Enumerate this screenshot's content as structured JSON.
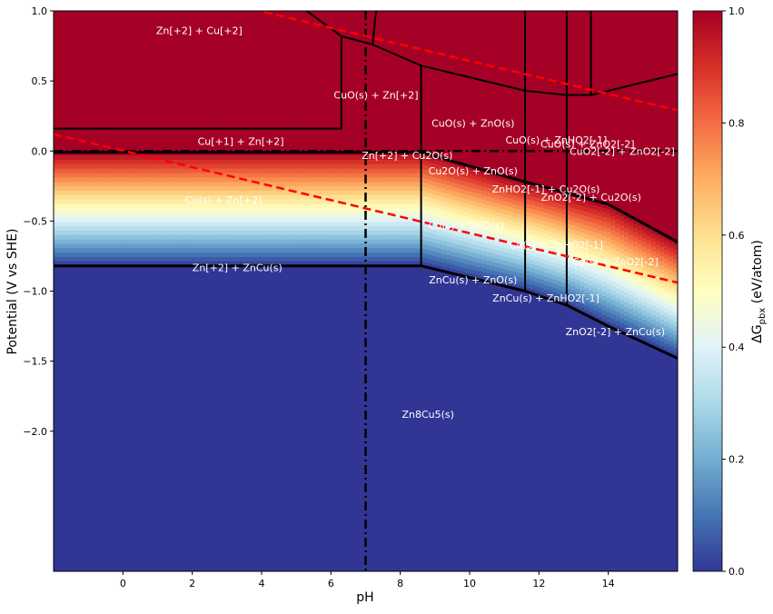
{
  "chart_data": {
    "type": "heatmap",
    "subtype": "pourbaix-diagram",
    "xlabel": "pH",
    "ylabel": "Potential (V vs SHE)",
    "xlim": [
      -2,
      16
    ],
    "ylim": [
      -3,
      1
    ],
    "xticks": [
      0,
      2,
      4,
      6,
      8,
      10,
      12,
      14
    ],
    "yticks": [
      1.0,
      0.5,
      0.0,
      -0.5,
      -1.0,
      -1.5,
      -2.0
    ],
    "xtick_labels": [
      "0",
      "2",
      "4",
      "6",
      "8",
      "10",
      "12",
      "14"
    ],
    "ytick_labels": [
      "1.0",
      "0.5",
      "0.0",
      "−0.5",
      "−1.0",
      "−1.5",
      "−2.0"
    ],
    "grid": false,
    "colorbar": {
      "label": "ΔG_pbx (eV/atom)",
      "label_main": "ΔG",
      "label_sub": "pbx",
      "label_tail": " (eV/atom)",
      "range": [
        0,
        1
      ],
      "ticks": [
        "0.0",
        "0.2",
        "0.4",
        "0.6",
        "0.8",
        "1.0"
      ],
      "colormap": "RdYlBu_r"
    },
    "field_profile": [
      {
        "pH": -2,
        "e_top": 0.0,
        "e_bottom": -0.82
      },
      {
        "pH": 8.6,
        "e_top": 0.0,
        "e_bottom": -0.82
      },
      {
        "pH": 11.6,
        "e_top": -0.22,
        "e_bottom": -1.0
      },
      {
        "pH": 12.8,
        "e_top": -0.3,
        "e_bottom": -1.1
      },
      {
        "pH": 14,
        "e_top": -0.38,
        "e_bottom": -1.25
      },
      {
        "pH": 16,
        "e_top": -0.65,
        "e_bottom": -1.48
      }
    ],
    "water_lines": [
      {
        "name": "O2/H2O",
        "points": [
          [
            -2,
            1.35
          ],
          [
            16,
            0.29
          ]
        ]
      },
      {
        "name": "H2O/H2",
        "points": [
          [
            -2,
            0.12
          ],
          [
            16,
            -0.94
          ]
        ]
      }
    ],
    "reference_lines": [
      {
        "orientation": "vertical",
        "pH": 7
      },
      {
        "orientation": "horizontal",
        "E": 0.0
      }
    ],
    "boundaries": [
      {
        "points": [
          [
            -2,
            0.16
          ],
          [
            6.3,
            0.16
          ],
          [
            6.3,
            0.82
          ],
          [
            5.3,
            1.0
          ]
        ]
      },
      {
        "points": [
          [
            6.3,
            0.82
          ],
          [
            7.2,
            0.76
          ],
          [
            7.3,
            1.0
          ]
        ]
      },
      {
        "points": [
          [
            7.2,
            0.76
          ],
          [
            8.6,
            0.61
          ],
          [
            11.6,
            0.43
          ],
          [
            12.8,
            0.4
          ],
          [
            13.5,
            0.4
          ],
          [
            16,
            0.55
          ]
        ]
      },
      {
        "points": [
          [
            8.6,
            0.61
          ],
          [
            8.6,
            -0.82
          ]
        ]
      },
      {
        "points": [
          [
            11.6,
            1.0
          ],
          [
            11.6,
            -1.0
          ]
        ]
      },
      {
        "points": [
          [
            12.8,
            1.0
          ],
          [
            12.8,
            -1.1
          ]
        ]
      },
      {
        "points": [
          [
            13.5,
            1.0
          ],
          [
            13.5,
            0.4
          ]
        ]
      },
      {
        "points": [
          [
            -2,
            -0.01
          ],
          [
            8.6,
            -0.01
          ],
          [
            11.6,
            -0.22
          ],
          [
            12.8,
            -0.3
          ],
          [
            14,
            -0.38
          ],
          [
            16,
            -0.65
          ]
        ],
        "bold": true
      },
      {
        "points": [
          [
            -2,
            -0.82
          ],
          [
            8.6,
            -0.82
          ],
          [
            11.6,
            -1.0
          ],
          [
            12.8,
            -1.1
          ],
          [
            14,
            -1.25
          ],
          [
            16,
            -1.48
          ]
        ],
        "bold": true
      }
    ],
    "region_labels": [
      {
        "text": "Zn[+2] + Cu[+2]",
        "pH": 2.2,
        "E": 0.86
      },
      {
        "text": "CuO(s) + Zn[+2]",
        "pH": 7.3,
        "E": 0.4
      },
      {
        "text": "CuO(s) + ZnO(s)",
        "pH": 10.1,
        "E": 0.2
      },
      {
        "text": "CuO(s) + ZnHO2[-1]",
        "pH": 12.5,
        "E": 0.08
      },
      {
        "text": "CuO(s) + ZnO2[-2]",
        "pH": 13.4,
        "E": 0.05
      },
      {
        "text": "CuO2[-2] + ZnO2[-2]",
        "pH": 14.4,
        "E": 0.0
      },
      {
        "text": "Cu[+1] + Zn[+2]",
        "pH": 3.4,
        "E": 0.07
      },
      {
        "text": "Zn[+2] + Cu2O(s)",
        "pH": 8.2,
        "E": -0.03
      },
      {
        "text": "Cu2O(s) + ZnO(s)",
        "pH": 10.1,
        "E": -0.14
      },
      {
        "text": "ZnHO2[-1] + Cu2O(s)",
        "pH": 12.2,
        "E": -0.27
      },
      {
        "text": "ZnO2[-2] + Cu2O(s)",
        "pH": 13.5,
        "E": -0.33
      },
      {
        "text": "Cu(s) + Zn[+2]",
        "pH": 2.9,
        "E": -0.35
      },
      {
        "text": "Cu(s) + ZnO(s)",
        "pH": 9.9,
        "E": -0.53
      },
      {
        "text": "Cu(s) + ZnHO2[-1]",
        "pH": 12.5,
        "E": -0.67
      },
      {
        "text": "Cu(s) + ZnO2[-2]",
        "pH": 14.2,
        "E": -0.79
      },
      {
        "text": "Zn[+2] + ZnCu(s)",
        "pH": 3.3,
        "E": -0.83
      },
      {
        "text": "ZnCu(s) + ZnO(s)",
        "pH": 10.1,
        "E": -0.92
      },
      {
        "text": "ZnCu(s) + ZnHO2[-1]",
        "pH": 12.2,
        "E": -1.05
      },
      {
        "text": "ZnO2[-2] + ZnCu(s)",
        "pH": 14.2,
        "E": -1.29
      },
      {
        "text": "Zn8Cu5(s)",
        "pH": 8.8,
        "E": -1.88
      }
    ]
  }
}
